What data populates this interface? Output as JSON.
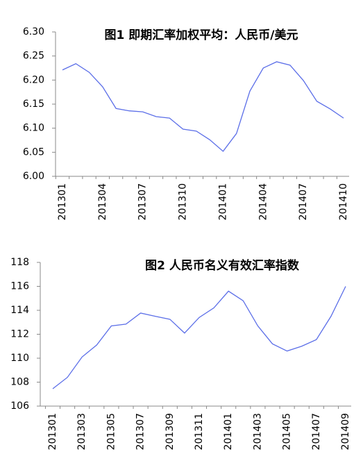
{
  "chart_data": [
    {
      "type": "line",
      "title": "图1 即期汇率加权平均：人民币/美元",
      "categories": [
        "201301",
        null,
        null,
        "201304",
        null,
        null,
        "201307",
        null,
        null,
        "201310",
        null,
        null,
        "201401",
        null,
        null,
        "201404",
        null,
        null,
        "201407",
        null,
        null,
        "201410"
      ],
      "series": [
        {
          "name": null,
          "color": "#5b6ee8",
          "values": [
            6.221,
            6.234,
            6.216,
            6.186,
            6.141,
            6.136,
            6.134,
            6.124,
            6.121,
            6.098,
            6.094,
            6.076,
            6.052,
            6.089,
            6.177,
            6.225,
            6.238,
            6.231,
            6.199,
            6.156,
            6.14,
            6.121
          ]
        }
      ],
      "ylim": [
        6.0,
        6.3
      ],
      "yticks": [
        {
          "value": 6.0,
          "label": "6.00"
        },
        {
          "value": 6.05,
          "label": "6.05"
        },
        {
          "value": 6.1,
          "label": "6.10"
        },
        {
          "value": 6.15,
          "label": "6.15"
        },
        {
          "value": 6.2,
          "label": "6.20"
        },
        {
          "value": 6.25,
          "label": "6.25"
        },
        {
          "value": 6.3,
          "label": "6.30"
        }
      ],
      "grid": false
    },
    {
      "type": "line",
      "title": "图2 人民币名义有效汇率指数",
      "categories": [
        "201301",
        null,
        "201303",
        null,
        "201305",
        null,
        "201307",
        null,
        "201309",
        null,
        "201311",
        null,
        "201401",
        null,
        "201403",
        null,
        "201405",
        null,
        "201407",
        null,
        "201409"
      ],
      "series": [
        {
          "name": null,
          "color": "#5b6ee8",
          "values": [
            107.45,
            108.4,
            110.1,
            111.1,
            112.7,
            112.85,
            113.77,
            113.5,
            113.25,
            112.1,
            113.4,
            114.2,
            115.6,
            114.8,
            112.7,
            111.2,
            110.6,
            111.0,
            111.55,
            113.5,
            116.0
          ]
        }
      ],
      "ylim": [
        106,
        118
      ],
      "yticks": [
        106,
        108,
        110,
        112,
        114,
        116,
        118
      ],
      "grid": false
    }
  ]
}
